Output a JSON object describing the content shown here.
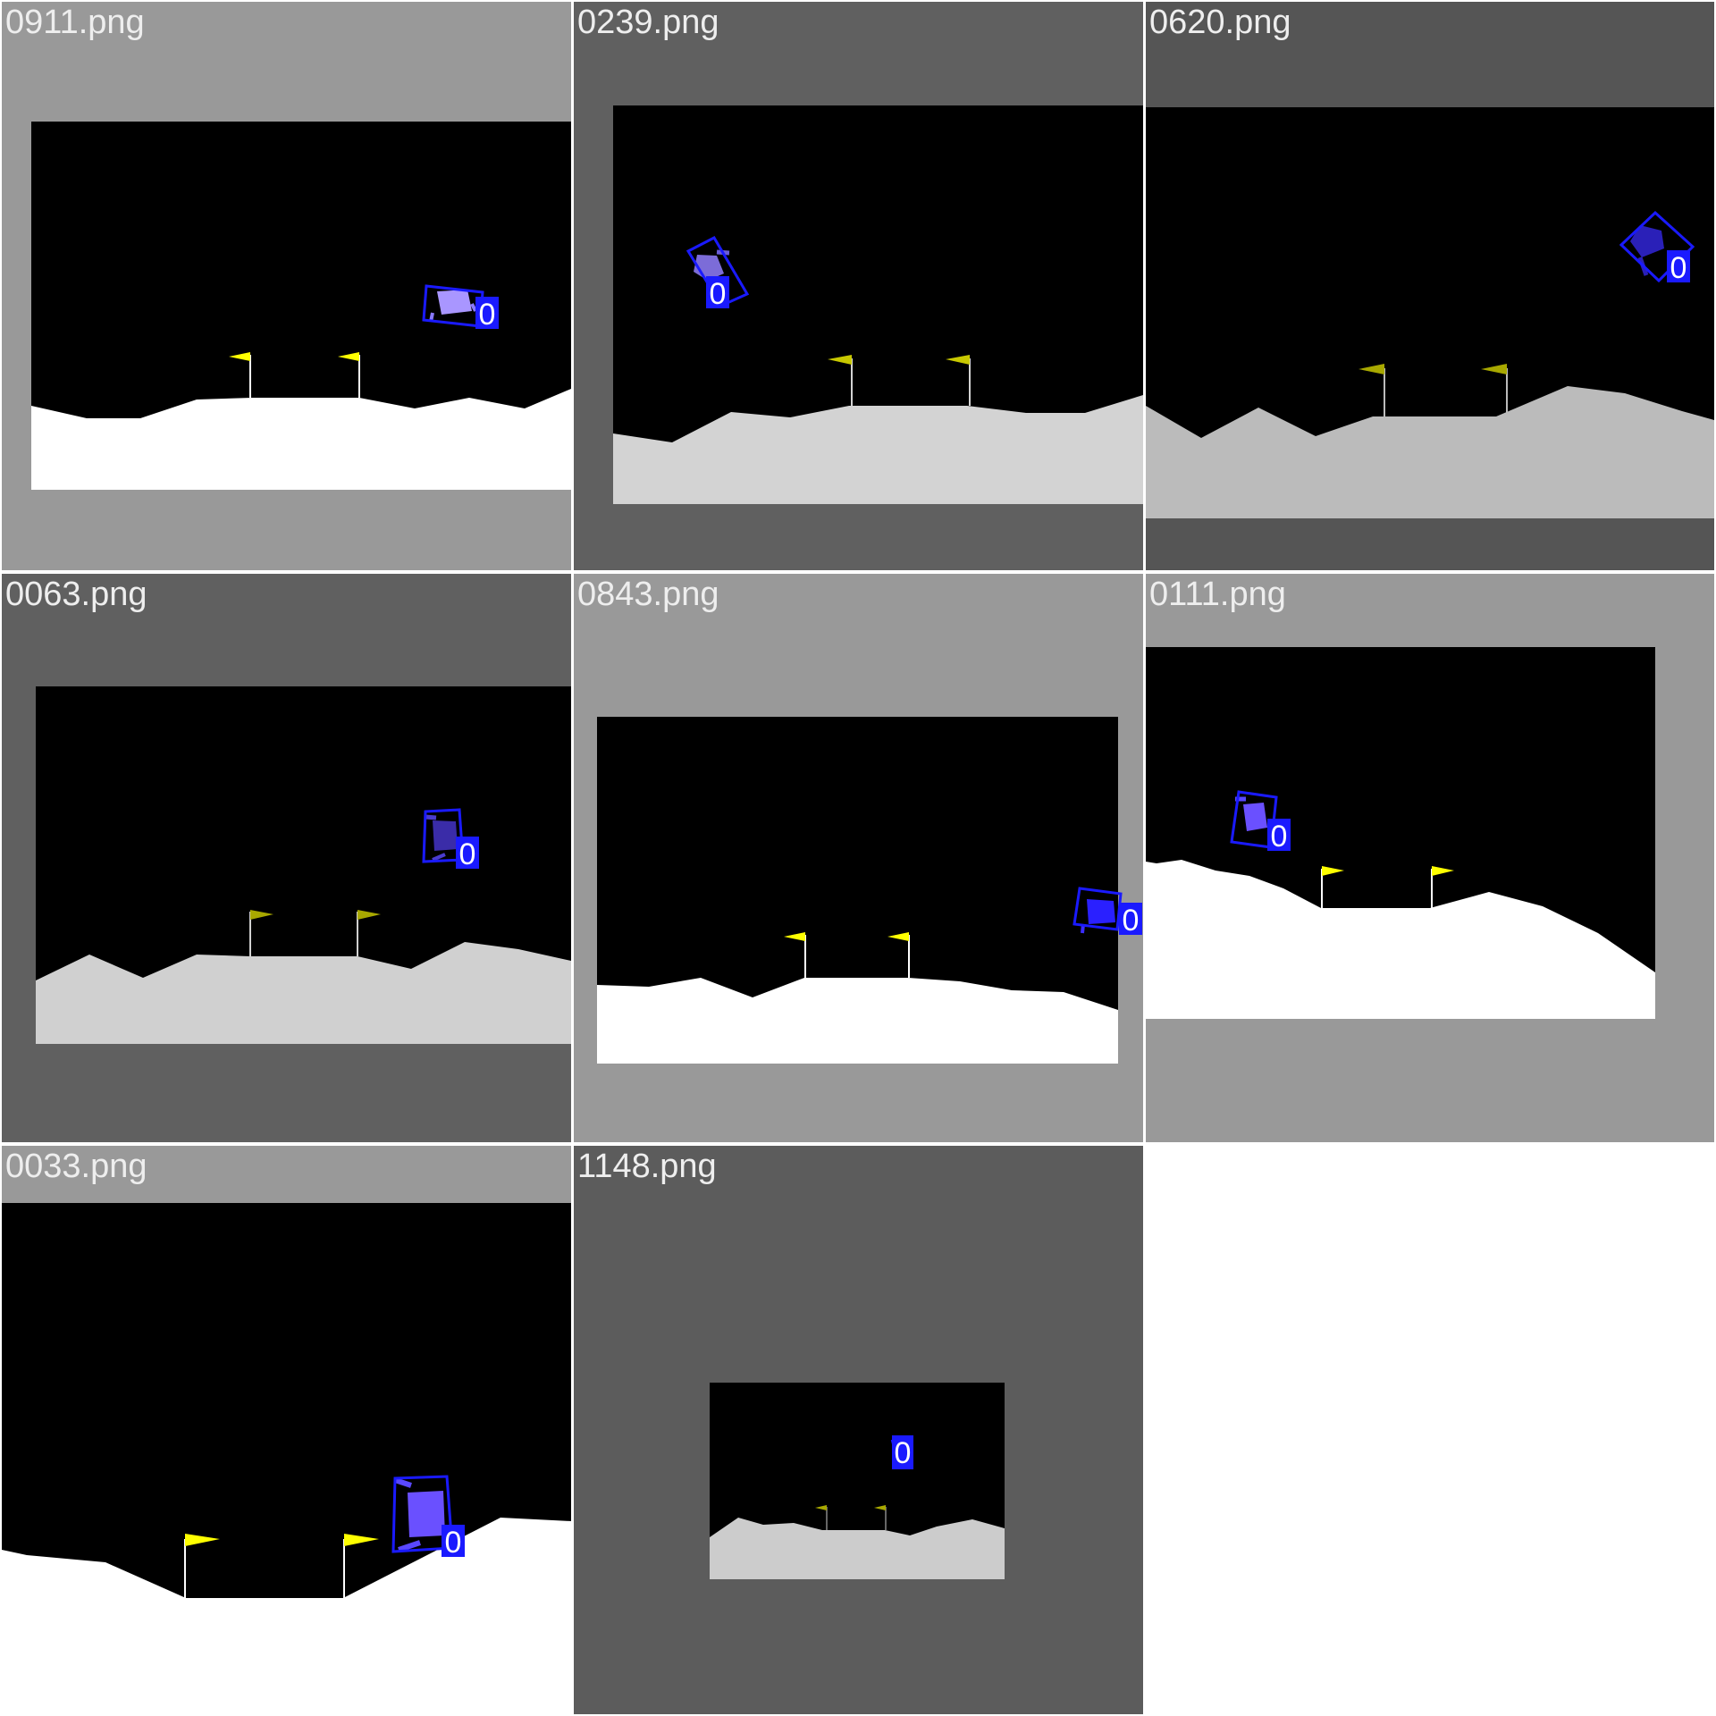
{
  "tiles": [
    {
      "filename": "0911.png",
      "box_label": "0"
    },
    {
      "filename": "0239.png",
      "box_label": "0"
    },
    {
      "filename": "0620.png",
      "box_label": "0"
    },
    {
      "filename": "0063.png",
      "box_label": "0"
    },
    {
      "filename": "0843.png",
      "box_label": "0"
    },
    {
      "filename": "0111.png",
      "box_label": "0"
    },
    {
      "filename": "0033.png",
      "box_label": "0"
    },
    {
      "filename": "1148.png",
      "box_label": "0"
    }
  ],
  "colors": {
    "sky": "#000000",
    "box": "#1a1aff",
    "flag": "#ffff00",
    "tile_backgrounds": [
      "#999999",
      "#606060",
      "#555555",
      "#606060",
      "#999999",
      "#999999",
      "#999999",
      "#5c5c5c"
    ],
    "ground": [
      "#ffffff",
      "#d3d3d3",
      "#bbbbbb",
      "#d0d0d0",
      "#ffffff",
      "#ffffff",
      "#ffffff",
      "#cccccc"
    ]
  }
}
